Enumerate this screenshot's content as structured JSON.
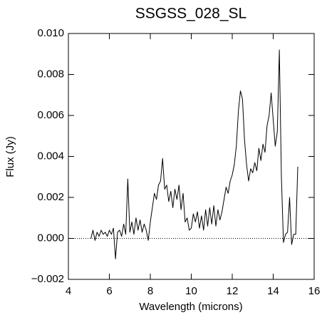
{
  "chart_data": {
    "type": "line",
    "title": "SSGSS_028_SL",
    "x_label": "Wavelength (microns)",
    "y_label": "Flux (Jy)",
    "xlim": [
      4,
      16
    ],
    "xticks": [
      4,
      6,
      8,
      10,
      12,
      14,
      16
    ],
    "ylim": [
      -0.002,
      0.01
    ],
    "yticks": [
      {
        "value": -0.002,
        "label": "−0.002"
      },
      {
        "value": 0,
        "label": "0.000"
      },
      {
        "value": 0.002,
        "label": "0.002"
      },
      {
        "value": 0.004,
        "label": "0.004"
      },
      {
        "value": 0.006,
        "label": "0.006"
      },
      {
        "value": 0.008,
        "label": "0.008"
      },
      {
        "value": 0.01,
        "label": "0.010"
      }
    ],
    "zero_line": true,
    "x": [
      5.1,
      5.2,
      5.3,
      5.4,
      5.5,
      5.6,
      5.7,
      5.8,
      5.9,
      6.0,
      6.1,
      6.2,
      6.3,
      6.4,
      6.5,
      6.6,
      6.7,
      6.8,
      6.9,
      7.0,
      7.1,
      7.2,
      7.3,
      7.4,
      7.5,
      7.6,
      7.7,
      7.8,
      7.9,
      8.0,
      8.1,
      8.2,
      8.3,
      8.4,
      8.5,
      8.6,
      8.7,
      8.8,
      8.9,
      9.0,
      9.1,
      9.2,
      9.3,
      9.4,
      9.5,
      9.6,
      9.7,
      9.8,
      9.9,
      10.0,
      10.1,
      10.2,
      10.3,
      10.4,
      10.5,
      10.6,
      10.7,
      10.8,
      10.9,
      11.0,
      11.1,
      11.2,
      11.3,
      11.4,
      11.5,
      11.6,
      11.7,
      11.8,
      11.9,
      12.0,
      12.1,
      12.2,
      12.3,
      12.4,
      12.5,
      12.6,
      12.7,
      12.8,
      12.9,
      13.0,
      13.1,
      13.2,
      13.3,
      13.4,
      13.5,
      13.6,
      13.7,
      13.8,
      13.9,
      14.0,
      14.1,
      14.2,
      14.3,
      14.4,
      14.5,
      14.6,
      14.7,
      14.8,
      14.9,
      15.0,
      15.1,
      15.2
    ],
    "series": [
      {
        "color": "#000000",
        "values": [
          0.0,
          0.0004,
          -0.0001,
          0.0003,
          0.0001,
          0.0004,
          0.0002,
          0.0003,
          0.0001,
          0.0004,
          0.0002,
          0.0005,
          -0.001,
          0.0003,
          0.0004,
          0.0001,
          0.0007,
          0.0002,
          0.0029,
          0.0003,
          0.0008,
          0.0002,
          0.001,
          0.0004,
          0.0009,
          0.0003,
          0.0007,
          0.0004,
          -0.0001,
          0.0008,
          0.0015,
          0.0022,
          0.0019,
          0.0026,
          0.0028,
          0.0039,
          0.0024,
          0.0026,
          0.0018,
          0.0023,
          0.0015,
          0.0024,
          0.0019,
          0.0026,
          0.0014,
          0.0022,
          0.0008,
          0.001,
          0.0004,
          0.0005,
          0.0012,
          0.0008,
          0.0013,
          0.0005,
          0.0011,
          0.0004,
          0.0014,
          0.0006,
          0.0015,
          0.0007,
          0.0016,
          0.0006,
          0.0014,
          0.0009,
          0.0013,
          0.0019,
          0.0025,
          0.0022,
          0.0028,
          0.0031,
          0.0036,
          0.0045,
          0.0062,
          0.0072,
          0.0068,
          0.0048,
          0.0036,
          0.0028,
          0.0034,
          0.0032,
          0.0037,
          0.0033,
          0.0044,
          0.0038,
          0.0046,
          0.0042,
          0.0055,
          0.006,
          0.0071,
          0.0058,
          0.0045,
          0.0052,
          0.0092,
          0.003,
          -0.0002,
          0.0002,
          0.0003,
          0.002,
          -0.0003,
          0.0002,
          0.0002,
          0.0035
        ]
      }
    ]
  }
}
